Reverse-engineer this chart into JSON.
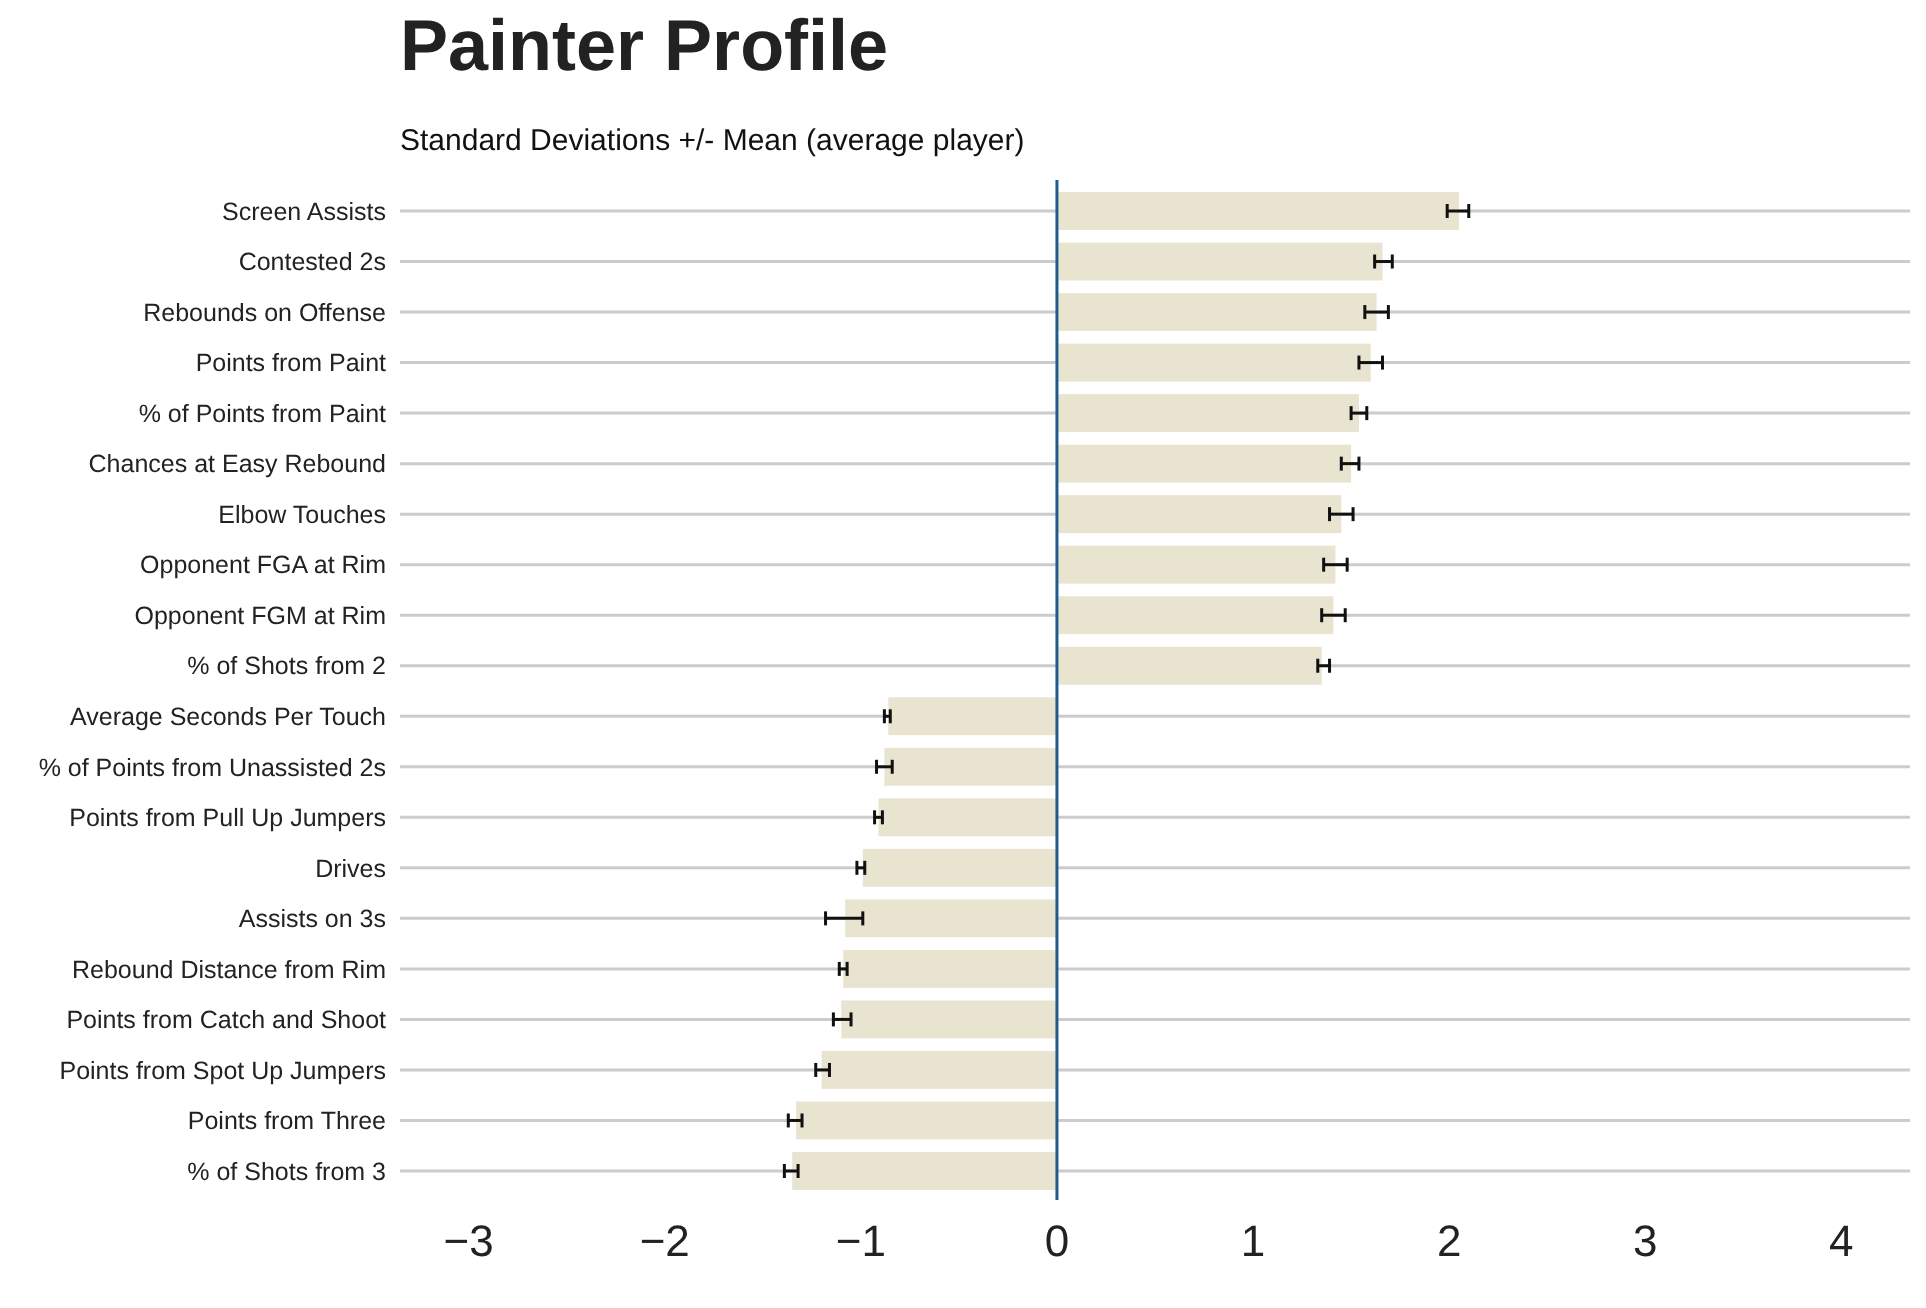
{
  "chart_data": {
    "type": "bar",
    "orientation": "horizontal",
    "title": "Painter Profile",
    "subtitle": "Standard Deviations +/- Mean (average player)",
    "categories": [
      "Screen Assists",
      "Contested 2s",
      "Rebounds on Offense",
      "Points from Paint",
      "% of Points from Paint",
      "Chances at Easy Rebound",
      "Elbow Touches",
      "Opponent FGA at Rim",
      "Opponent FGM at Rim",
      "% of Shots from 2",
      "Average Seconds Per Touch",
      "% of Points from Unassisted 2s",
      "Points from Pull Up Jumpers",
      "Drives",
      "Assists on 3s",
      "Rebound Distance from Rim",
      "Points from Catch and Shoot",
      "Points from Spot Up Jumpers",
      "Points from Three",
      "% of Shots from 3"
    ],
    "values": [
      2.05,
      1.66,
      1.63,
      1.6,
      1.54,
      1.5,
      1.45,
      1.42,
      1.41,
      1.35,
      -0.86,
      -0.88,
      -0.91,
      -0.99,
      -1.08,
      -1.09,
      -1.1,
      -1.2,
      -1.33,
      -1.35
    ],
    "errors": [
      [
        1.99,
        2.1
      ],
      [
        1.62,
        1.71
      ],
      [
        1.57,
        1.69
      ],
      [
        1.54,
        1.66
      ],
      [
        1.5,
        1.58
      ],
      [
        1.45,
        1.54
      ],
      [
        1.39,
        1.51
      ],
      [
        1.36,
        1.48
      ],
      [
        1.35,
        1.47
      ],
      [
        1.33,
        1.39
      ],
      [
        -0.88,
        -0.85
      ],
      [
        -0.92,
        -0.84
      ],
      [
        -0.93,
        -0.89
      ],
      [
        -1.02,
        -0.98
      ],
      [
        -1.18,
        -0.99
      ],
      [
        -1.11,
        -1.07
      ],
      [
        -1.14,
        -1.05
      ],
      [
        -1.23,
        -1.16
      ],
      [
        -1.37,
        -1.3
      ],
      [
        -1.39,
        -1.32
      ]
    ],
    "color": "#e8e4d0",
    "xlim": [
      -3.35,
      4.35
    ],
    "xticks": [
      -3,
      -2,
      -1,
      0,
      1,
      2,
      3,
      4
    ],
    "grid": "y",
    "ref_lines": [
      {
        "axis": "x",
        "value": 0,
        "color": "#1f5b8c"
      }
    ]
  }
}
